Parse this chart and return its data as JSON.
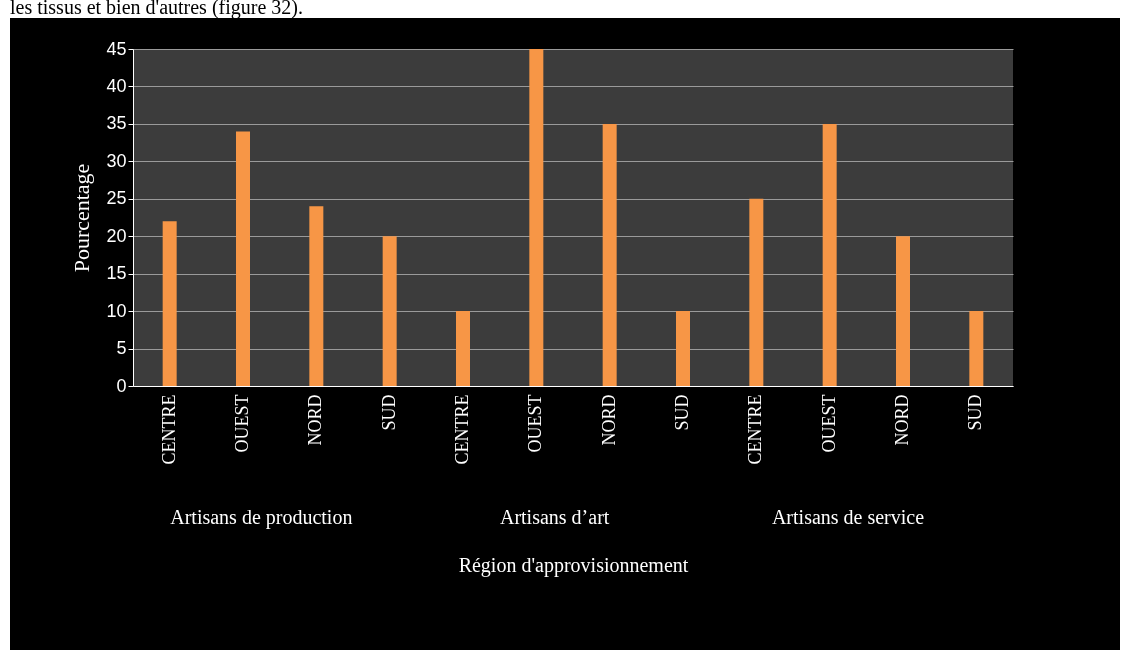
{
  "chart_data": {
    "type": "bar",
    "ylabel": "Pourcentage",
    "xlabel": "Région  d'approvisionnement",
    "categories": [
      "CENTRE",
      "OUEST",
      "NORD",
      "SUD",
      "CENTRE",
      "OUEST",
      "NORD",
      "SUD",
      "CENTRE",
      "OUEST",
      "NORD",
      "SUD"
    ],
    "values": [
      22,
      34,
      24,
      20,
      10,
      45,
      35,
      10,
      25,
      35,
      20,
      10
    ],
    "color": "#f79646",
    "ylim": [
      0,
      45
    ],
    "yticks": [
      0,
      5,
      10,
      15,
      20,
      25,
      30,
      35,
      40,
      45
    ],
    "grid": "y",
    "annotations": [
      "Artisans de production",
      "Artisans d’art",
      "Artisans de service",
      "les tissus et bien d'autres (figure 32)."
    ]
  }
}
